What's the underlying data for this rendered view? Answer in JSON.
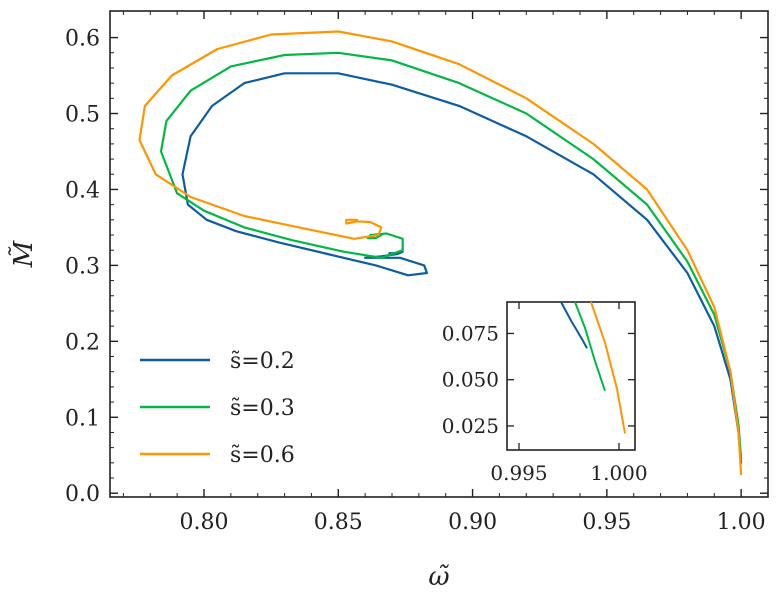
{
  "chart_data": {
    "type": "line",
    "xlabel": "ω̃",
    "ylabel": "M̃",
    "xlim": [
      0.765,
      1.01
    ],
    "ylim": [
      -0.005,
      0.635
    ],
    "xticks": [
      0.8,
      0.85,
      0.9,
      0.95,
      1.0
    ],
    "xtick_labels": [
      "0.80",
      "0.85",
      "0.90",
      "0.95",
      "1.00"
    ],
    "yticks": [
      0.0,
      0.1,
      0.2,
      0.3,
      0.4,
      0.5,
      0.6
    ],
    "ytick_labels": [
      "0.0",
      "0.1",
      "0.2",
      "0.3",
      "0.4",
      "0.5",
      "0.6"
    ],
    "legend_position": "lower-left",
    "series": [
      {
        "name": "s̃=0.2",
        "color": "#0C5DA5",
        "x": [
          1.0,
          0.999,
          0.996,
          0.99,
          0.98,
          0.965,
          0.945,
          0.92,
          0.895,
          0.87,
          0.85,
          0.83,
          0.815,
          0.803,
          0.795,
          0.792,
          0.794,
          0.801,
          0.812,
          0.828,
          0.846,
          0.864,
          0.876,
          0.883,
          0.882,
          0.873,
          0.862,
          0.86,
          0.866,
          0.872,
          0.874,
          0.872,
          0.869
        ],
        "y": [
          0.04,
          0.08,
          0.15,
          0.22,
          0.29,
          0.36,
          0.42,
          0.47,
          0.51,
          0.538,
          0.553,
          0.553,
          0.54,
          0.51,
          0.47,
          0.42,
          0.38,
          0.36,
          0.345,
          0.33,
          0.315,
          0.3,
          0.287,
          0.29,
          0.3,
          0.31,
          0.31,
          0.31,
          0.312,
          0.315,
          0.318,
          0.316,
          0.316
        ]
      },
      {
        "name": "s̃=0.3",
        "color": "#00B945",
        "x": [
          1.0,
          0.999,
          0.996,
          0.99,
          0.98,
          0.965,
          0.945,
          0.92,
          0.895,
          0.87,
          0.85,
          0.83,
          0.81,
          0.795,
          0.786,
          0.784,
          0.79,
          0.8,
          0.815,
          0.833,
          0.852,
          0.866,
          0.874,
          0.874,
          0.868,
          0.862,
          0.861,
          0.864,
          0.866,
          0.865
        ],
        "y": [
          0.045,
          0.09,
          0.16,
          0.235,
          0.305,
          0.38,
          0.44,
          0.5,
          0.54,
          0.57,
          0.58,
          0.577,
          0.562,
          0.53,
          0.49,
          0.45,
          0.395,
          0.372,
          0.35,
          0.333,
          0.318,
          0.31,
          0.32,
          0.335,
          0.342,
          0.34,
          0.336,
          0.336,
          0.34,
          0.338
        ]
      },
      {
        "name": "s̃=0.6",
        "color": "#FF9500",
        "x": [
          1.0,
          0.999,
          0.996,
          0.99,
          0.98,
          0.965,
          0.945,
          0.92,
          0.895,
          0.87,
          0.85,
          0.825,
          0.805,
          0.788,
          0.778,
          0.776,
          0.782,
          0.795,
          0.815,
          0.838,
          0.856,
          0.865,
          0.866,
          0.862,
          0.857,
          0.853,
          0.853,
          0.857
        ],
        "y": [
          0.025,
          0.08,
          0.16,
          0.245,
          0.32,
          0.4,
          0.46,
          0.52,
          0.565,
          0.595,
          0.608,
          0.604,
          0.585,
          0.55,
          0.51,
          0.465,
          0.42,
          0.39,
          0.365,
          0.348,
          0.335,
          0.34,
          0.35,
          0.357,
          0.358,
          0.355,
          0.36,
          0.36
        ]
      }
    ],
    "inset": {
      "xlim": [
        0.9944,
        1.0008
      ],
      "ylim": [
        0.012,
        0.092
      ],
      "xticks": [
        0.995,
        1.0
      ],
      "xtick_labels": [
        "0.995",
        "1.000"
      ],
      "yticks": [
        0.025,
        0.05,
        0.075
      ],
      "ytick_labels": [
        "0.025",
        "0.050",
        "0.075"
      ],
      "series": [
        {
          "color": "#0C5DA5",
          "x": [
            0.9971,
            0.9976,
            0.9982,
            0.9984
          ],
          "y": [
            0.092,
            0.082,
            0.071,
            0.067
          ]
        },
        {
          "color": "#00B945",
          "x": [
            0.9978,
            0.9983,
            0.9988,
            0.9993
          ],
          "y": [
            0.092,
            0.078,
            0.06,
            0.044
          ]
        },
        {
          "color": "#FF9500",
          "x": [
            0.9986,
            0.9993,
            0.9999,
            1.0003
          ],
          "y": [
            0.092,
            0.07,
            0.045,
            0.021
          ]
        }
      ]
    }
  }
}
